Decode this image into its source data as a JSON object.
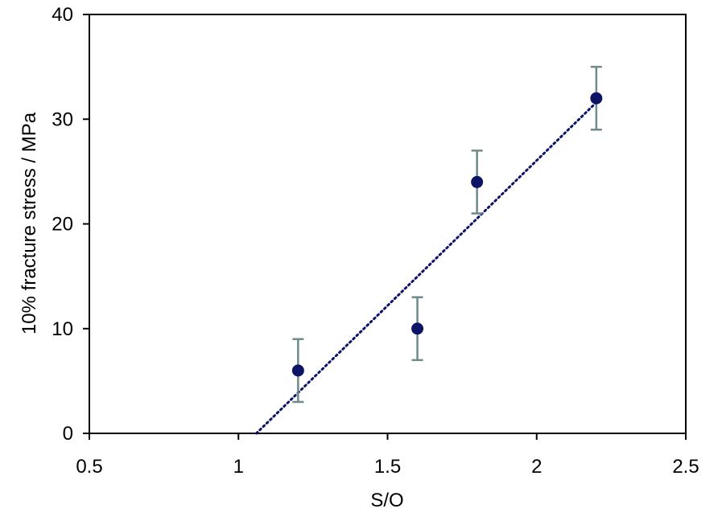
{
  "chart_data": {
    "type": "scatter",
    "xlabel": "S/O",
    "ylabel": "10% fracture stress / MPa",
    "xlim": [
      0.5,
      2.5
    ],
    "ylim": [
      0,
      40
    ],
    "x_ticks": [
      0.5,
      1,
      1.5,
      2,
      2.5
    ],
    "x_tick_labels": [
      "0.5",
      "1",
      "1.5",
      "2",
      "2.5"
    ],
    "y_ticks": [
      0,
      10,
      20,
      30,
      40
    ],
    "y_tick_labels": [
      "0",
      "10",
      "20",
      "30",
      "40"
    ],
    "grid": false,
    "series": [
      {
        "x": [
          1.2,
          1.6,
          1.8,
          2.2
        ],
        "y": [
          6,
          10,
          24,
          32
        ],
        "error_low": [
          3,
          3,
          3,
          3
        ],
        "error_high": [
          3,
          3,
          3,
          3
        ],
        "marker_color": "#0d1466",
        "error_color": "#6f8a8a"
      }
    ],
    "trendline": {
      "kind": "linear",
      "style": "dotted",
      "color": "#0d1466",
      "x_range": [
        1.06,
        2.2
      ],
      "points": [
        [
          1.06,
          0
        ],
        [
          2.2,
          31.6
        ]
      ]
    }
  }
}
